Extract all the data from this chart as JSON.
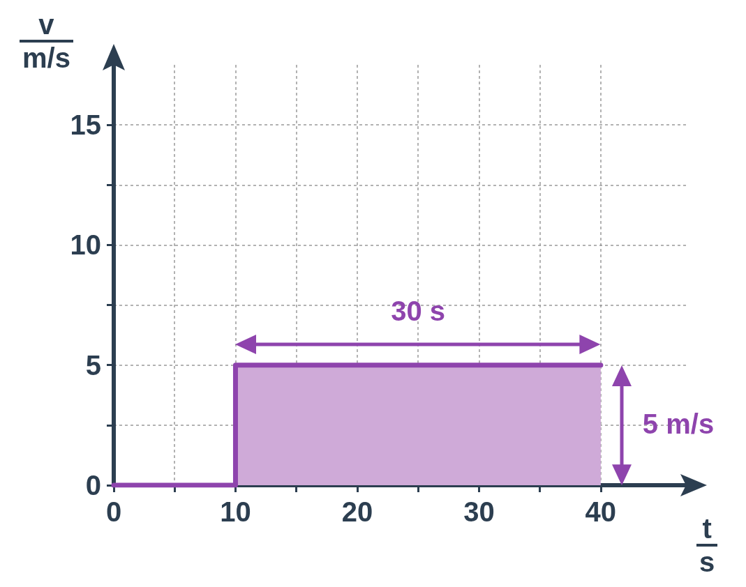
{
  "chart_data": {
    "type": "step",
    "xlabel": "t\ns",
    "ylabel": "v\nm/s",
    "xlim": [
      0,
      47
    ],
    "ylim": [
      0,
      17.5
    ],
    "xticks": [
      0,
      {
        "value": 5,
        "label": null
      },
      10,
      {
        "value": 15,
        "label": null
      },
      20,
      {
        "value": 25,
        "label": null
      },
      30,
      {
        "value": 35,
        "label": null
      },
      40
    ],
    "yticks": [
      0,
      {
        "value": 2.5,
        "label": null
      },
      5,
      {
        "value": 7.5,
        "label": null
      },
      10,
      {
        "value": 12.5,
        "label": null
      },
      15
    ],
    "grid": true,
    "series": [
      {
        "type": "area",
        "color": "#cfaad8",
        "x": [
          10,
          40
        ],
        "values": [
          5,
          5
        ]
      },
      {
        "color": "#8e44ad",
        "x": [
          0,
          10,
          40
        ],
        "values": [
          0,
          5,
          5
        ]
      }
    ],
    "annotations": [
      "30 s",
      "5 m/s"
    ]
  }
}
